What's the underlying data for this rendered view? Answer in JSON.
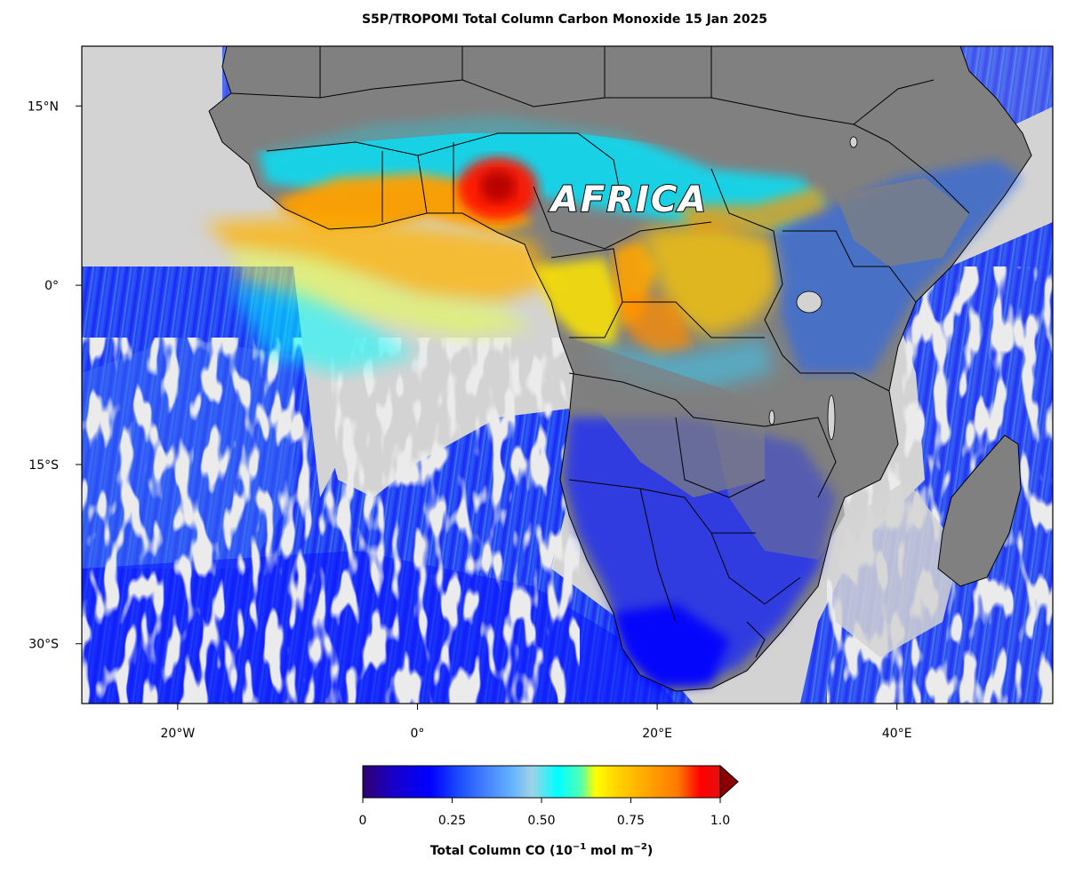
{
  "title": "S5P/TROPOMI Total Column Carbon Monoxide  15 Jan 2025",
  "region_label": "AFRICA",
  "map": {
    "lon_range": [
      -28,
      53
    ],
    "lat_range": [
      -35,
      20
    ],
    "x_ticks": [
      {
        "value": -20,
        "label": "20°W"
      },
      {
        "value": 0,
        "label": "0°"
      },
      {
        "value": 20,
        "label": "20°E"
      },
      {
        "value": 40,
        "label": "40°E"
      }
    ],
    "y_ticks": [
      {
        "value": 15,
        "label": "15°N"
      },
      {
        "value": 0,
        "label": "0°"
      },
      {
        "value": -15,
        "label": "15°S"
      },
      {
        "value": -30,
        "label": "30°S"
      }
    ],
    "colors": {
      "no_data": "#d3d3d3",
      "land": "#808080",
      "border": "#000000"
    }
  },
  "colorbar": {
    "title_main": "Total Column CO (10",
    "title_exp1": "−1",
    "title_mid": " mol m",
    "title_exp2": "−2",
    "title_end": ")",
    "ticks": [
      {
        "value": 0,
        "label": "0"
      },
      {
        "value": 0.25,
        "label": "0.25"
      },
      {
        "value": 0.5,
        "label": "0.50"
      },
      {
        "value": 0.75,
        "label": "0.75"
      },
      {
        "value": 1.0,
        "label": "1.0"
      }
    ],
    "range": [
      0,
      1
    ],
    "extend": "max",
    "colors": [
      "#30006e",
      "#1800c8",
      "#0000ff",
      "#1e50ff",
      "#4682ff",
      "#64b4ff",
      "#a0d2e6",
      "#00ffff",
      "#50ffb4",
      "#ffff00",
      "#ffd200",
      "#ffa500",
      "#ff7800",
      "#ff0000",
      "#d21e1e",
      "#a01414"
    ]
  }
}
